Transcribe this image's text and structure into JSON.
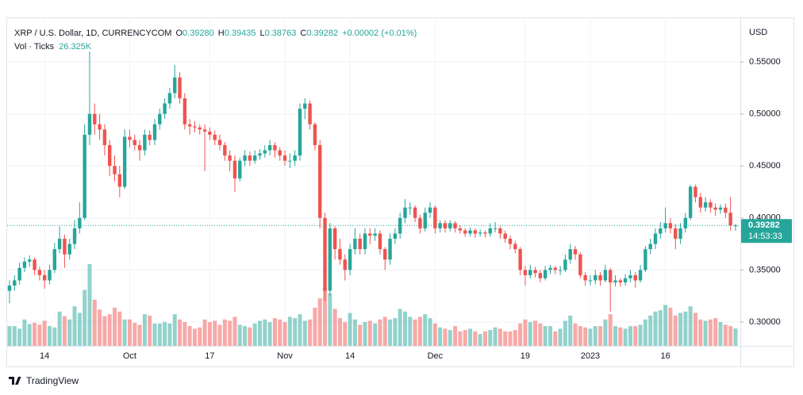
{
  "chart_data": {
    "type": "candlestick",
    "title": "XRP / U.S. Dollar, 1D, CURRENCYCOM",
    "legend": [
      {
        "key": "O",
        "label": "0.39280"
      },
      {
        "key": "H",
        "label": "0.39435"
      },
      {
        "key": "L",
        "label": "0.38763"
      },
      {
        "key": "C",
        "label": "0.39282"
      }
    ],
    "change": "+0.00002 (+0.01%)",
    "currency": "USD",
    "colors": {
      "up": "#26a69a",
      "down": "#ef5350"
    },
    "categories": [
      null,
      null,
      null,
      null,
      null,
      null,
      null,
      "14",
      null,
      null,
      null,
      null,
      null,
      null,
      null,
      null,
      null,
      null,
      null,
      null,
      null,
      null,
      null,
      null,
      "Oct",
      null,
      null,
      null,
      null,
      null,
      null,
      null,
      null,
      null,
      null,
      null,
      null,
      null,
      null,
      null,
      "17",
      null,
      null,
      null,
      null,
      null,
      null,
      null,
      null,
      null,
      null,
      null,
      null,
      null,
      null,
      "Nov",
      null,
      null,
      null,
      null,
      null,
      null,
      null,
      null,
      null,
      null,
      null,
      null,
      "14",
      null,
      null,
      null,
      null,
      null,
      null,
      null,
      null,
      null,
      null,
      null,
      null,
      null,
      null,
      null,
      null,
      "Dec",
      null,
      null,
      null,
      null,
      null,
      null,
      null,
      null,
      null,
      null,
      null,
      null,
      null,
      null,
      null,
      null,
      null,
      "19",
      null,
      null,
      null,
      null,
      null,
      null,
      null,
      null,
      null,
      null,
      null,
      null,
      "2023",
      null,
      null,
      null,
      null,
      null,
      null,
      null,
      null,
      null,
      null,
      null,
      null,
      null,
      null,
      "16",
      null,
      null,
      null,
      null,
      null,
      null,
      null,
      null,
      null,
      null,
      null,
      null,
      null,
      null
    ],
    "ohlc": [
      [
        0.33,
        0.34,
        0.318,
        0.335
      ],
      [
        0.335,
        0.345,
        0.33,
        0.34
      ],
      [
        0.34,
        0.357,
        0.336,
        0.352
      ],
      [
        0.352,
        0.362,
        0.348,
        0.358
      ],
      [
        0.358,
        0.364,
        0.353,
        0.36
      ],
      [
        0.36,
        0.362,
        0.345,
        0.35
      ],
      [
        0.35,
        0.353,
        0.34,
        0.345
      ],
      [
        0.345,
        0.35,
        0.332,
        0.34
      ],
      [
        0.34,
        0.355,
        0.336,
        0.35
      ],
      [
        0.35,
        0.376,
        0.347,
        0.37
      ],
      [
        0.37,
        0.392,
        0.366,
        0.38
      ],
      [
        0.38,
        0.384,
        0.352,
        0.365
      ],
      [
        0.365,
        0.38,
        0.36,
        0.375
      ],
      [
        0.375,
        0.398,
        0.37,
        0.39
      ],
      [
        0.39,
        0.415,
        0.385,
        0.4
      ],
      [
        0.4,
        0.49,
        0.398,
        0.48
      ],
      [
        0.48,
        0.56,
        0.47,
        0.5
      ],
      [
        0.5,
        0.51,
        0.48,
        0.49
      ],
      [
        0.49,
        0.5,
        0.475,
        0.485
      ],
      [
        0.485,
        0.49,
        0.46,
        0.47
      ],
      [
        0.47,
        0.475,
        0.44,
        0.45
      ],
      [
        0.45,
        0.46,
        0.435,
        0.442
      ],
      [
        0.442,
        0.45,
        0.42,
        0.43
      ],
      [
        0.43,
        0.485,
        0.428,
        0.478
      ],
      [
        0.478,
        0.485,
        0.468,
        0.475
      ],
      [
        0.475,
        0.48,
        0.465,
        0.47
      ],
      [
        0.47,
        0.475,
        0.455,
        0.465
      ],
      [
        0.465,
        0.485,
        0.46,
        0.48
      ],
      [
        0.48,
        0.484,
        0.47,
        0.475
      ],
      [
        0.475,
        0.495,
        0.47,
        0.49
      ],
      [
        0.49,
        0.505,
        0.485,
        0.5
      ],
      [
        0.5,
        0.515,
        0.495,
        0.51
      ],
      [
        0.51,
        0.525,
        0.505,
        0.52
      ],
      [
        0.52,
        0.547,
        0.515,
        0.535
      ],
      [
        0.535,
        0.54,
        0.51,
        0.515
      ],
      [
        0.515,
        0.52,
        0.485,
        0.49
      ],
      [
        0.49,
        0.495,
        0.48,
        0.488
      ],
      [
        0.488,
        0.493,
        0.482,
        0.487
      ],
      [
        0.487,
        0.49,
        0.48,
        0.485
      ],
      [
        0.485,
        0.49,
        0.445,
        0.483
      ],
      [
        0.483,
        0.487,
        0.475,
        0.48
      ],
      [
        0.48,
        0.484,
        0.47,
        0.475
      ],
      [
        0.475,
        0.48,
        0.465,
        0.47
      ],
      [
        0.47,
        0.473,
        0.455,
        0.46
      ],
      [
        0.46,
        0.465,
        0.445,
        0.455
      ],
      [
        0.455,
        0.46,
        0.425,
        0.438
      ],
      [
        0.438,
        0.458,
        0.435,
        0.455
      ],
      [
        0.455,
        0.465,
        0.45,
        0.46
      ],
      [
        0.46,
        0.464,
        0.45,
        0.455
      ],
      [
        0.455,
        0.465,
        0.452,
        0.46
      ],
      [
        0.46,
        0.466,
        0.456,
        0.462
      ],
      [
        0.462,
        0.47,
        0.458,
        0.465
      ],
      [
        0.465,
        0.475,
        0.46,
        0.47
      ],
      [
        0.47,
        0.473,
        0.458,
        0.465
      ],
      [
        0.465,
        0.468,
        0.455,
        0.46
      ],
      [
        0.46,
        0.465,
        0.45,
        0.455
      ],
      [
        0.455,
        0.462,
        0.448,
        0.455
      ],
      [
        0.455,
        0.465,
        0.45,
        0.46
      ],
      [
        0.46,
        0.51,
        0.455,
        0.505
      ],
      [
        0.505,
        0.515,
        0.495,
        0.51
      ],
      [
        0.51,
        0.513,
        0.485,
        0.49
      ],
      [
        0.49,
        0.492,
        0.465,
        0.47
      ],
      [
        0.47,
        0.475,
        0.39,
        0.4
      ],
      [
        0.4,
        0.405,
        0.32,
        0.33
      ],
      [
        0.33,
        0.395,
        0.325,
        0.39
      ],
      [
        0.39,
        0.392,
        0.36,
        0.37
      ],
      [
        0.37,
        0.38,
        0.355,
        0.36
      ],
      [
        0.36,
        0.365,
        0.34,
        0.35
      ],
      [
        0.35,
        0.375,
        0.345,
        0.37
      ],
      [
        0.37,
        0.39,
        0.365,
        0.38
      ],
      [
        0.38,
        0.385,
        0.365,
        0.37
      ],
      [
        0.37,
        0.39,
        0.365,
        0.385
      ],
      [
        0.385,
        0.39,
        0.375,
        0.383
      ],
      [
        0.383,
        0.39,
        0.378,
        0.385
      ],
      [
        0.385,
        0.388,
        0.365,
        0.37
      ],
      [
        0.37,
        0.372,
        0.35,
        0.36
      ],
      [
        0.36,
        0.385,
        0.355,
        0.38
      ],
      [
        0.38,
        0.39,
        0.375,
        0.385
      ],
      [
        0.385,
        0.405,
        0.38,
        0.4
      ],
      [
        0.4,
        0.418,
        0.395,
        0.41
      ],
      [
        0.41,
        0.415,
        0.403,
        0.41
      ],
      [
        0.41,
        0.412,
        0.396,
        0.4
      ],
      [
        0.4,
        0.403,
        0.385,
        0.39
      ],
      [
        0.39,
        0.41,
        0.387,
        0.405
      ],
      [
        0.405,
        0.415,
        0.4,
        0.41
      ],
      [
        0.41,
        0.412,
        0.385,
        0.39
      ],
      [
        0.39,
        0.398,
        0.386,
        0.395
      ],
      [
        0.395,
        0.398,
        0.386,
        0.39
      ],
      [
        0.39,
        0.398,
        0.387,
        0.395
      ],
      [
        0.395,
        0.397,
        0.386,
        0.39
      ],
      [
        0.39,
        0.393,
        0.385,
        0.388
      ],
      [
        0.388,
        0.39,
        0.382,
        0.385
      ],
      [
        0.385,
        0.391,
        0.382,
        0.388
      ],
      [
        0.388,
        0.39,
        0.381,
        0.385
      ],
      [
        0.385,
        0.389,
        0.382,
        0.386
      ],
      [
        0.386,
        0.388,
        0.381,
        0.385
      ],
      [
        0.385,
        0.395,
        0.382,
        0.39
      ],
      [
        0.39,
        0.396,
        0.386,
        0.39
      ],
      [
        0.39,
        0.392,
        0.38,
        0.385
      ],
      [
        0.385,
        0.388,
        0.376,
        0.38
      ],
      [
        0.38,
        0.383,
        0.37,
        0.375
      ],
      [
        0.375,
        0.378,
        0.366,
        0.37
      ],
      [
        0.37,
        0.372,
        0.345,
        0.35
      ],
      [
        0.35,
        0.354,
        0.335,
        0.345
      ],
      [
        0.345,
        0.355,
        0.342,
        0.35
      ],
      [
        0.35,
        0.353,
        0.343,
        0.347
      ],
      [
        0.347,
        0.35,
        0.338,
        0.342
      ],
      [
        0.342,
        0.354,
        0.34,
        0.35
      ],
      [
        0.35,
        0.355,
        0.346,
        0.352
      ],
      [
        0.352,
        0.354,
        0.346,
        0.35
      ],
      [
        0.35,
        0.354,
        0.345,
        0.35
      ],
      [
        0.35,
        0.365,
        0.348,
        0.36
      ],
      [
        0.36,
        0.375,
        0.356,
        0.37
      ],
      [
        0.37,
        0.373,
        0.36,
        0.365
      ],
      [
        0.365,
        0.367,
        0.342,
        0.345
      ],
      [
        0.345,
        0.348,
        0.335,
        0.34
      ],
      [
        0.34,
        0.345,
        0.335,
        0.34
      ],
      [
        0.34,
        0.35,
        0.336,
        0.345
      ],
      [
        0.345,
        0.348,
        0.335,
        0.34
      ],
      [
        0.34,
        0.355,
        0.338,
        0.35
      ],
      [
        0.35,
        0.352,
        0.31,
        0.338
      ],
      [
        0.338,
        0.345,
        0.334,
        0.34
      ],
      [
        0.34,
        0.342,
        0.334,
        0.338
      ],
      [
        0.338,
        0.346,
        0.335,
        0.342
      ],
      [
        0.342,
        0.35,
        0.338,
        0.345
      ],
      [
        0.345,
        0.348,
        0.333,
        0.34
      ],
      [
        0.34,
        0.355,
        0.338,
        0.35
      ],
      [
        0.35,
        0.373,
        0.348,
        0.37
      ],
      [
        0.37,
        0.38,
        0.365,
        0.375
      ],
      [
        0.375,
        0.39,
        0.37,
        0.385
      ],
      [
        0.385,
        0.396,
        0.38,
        0.39
      ],
      [
        0.39,
        0.41,
        0.386,
        0.395
      ],
      [
        0.395,
        0.4,
        0.385,
        0.39
      ],
      [
        0.39,
        0.394,
        0.37,
        0.38
      ],
      [
        0.38,
        0.395,
        0.375,
        0.39
      ],
      [
        0.39,
        0.405,
        0.386,
        0.4
      ],
      [
        0.4,
        0.432,
        0.398,
        0.43
      ],
      [
        0.43,
        0.432,
        0.415,
        0.42
      ],
      [
        0.42,
        0.424,
        0.405,
        0.41
      ],
      [
        0.41,
        0.42,
        0.406,
        0.415
      ],
      [
        0.415,
        0.418,
        0.405,
        0.41
      ],
      [
        0.41,
        0.414,
        0.402,
        0.408
      ],
      [
        0.408,
        0.413,
        0.404,
        0.41
      ],
      [
        0.41,
        0.414,
        0.4,
        0.405
      ],
      [
        0.405,
        0.42,
        0.388,
        0.3928
      ],
      [
        0.3928,
        0.39435,
        0.38763,
        0.39282
      ]
    ],
    "volume": {
      "name": "Vol · Ticks",
      "label": "26.325K",
      "values": [
        30000,
        30000,
        26000,
        40000,
        33000,
        35000,
        32000,
        38000,
        30000,
        28000,
        52000,
        45000,
        40000,
        60000,
        50000,
        85000,
        124000,
        70000,
        55000,
        45000,
        48000,
        58000,
        52000,
        40000,
        40000,
        35000,
        32000,
        48000,
        46000,
        34000,
        34000,
        36000,
        34000,
        48000,
        40000,
        36000,
        30000,
        26000,
        28000,
        40000,
        36000,
        38000,
        32000,
        40000,
        38000,
        44000,
        32000,
        30000,
        28000,
        34000,
        38000,
        40000,
        36000,
        42000,
        40000,
        36000,
        44000,
        42000,
        48000,
        38000,
        40000,
        58000,
        72000,
        88000,
        80000,
        56000,
        42000,
        36000,
        50000,
        40000,
        32000,
        36000,
        38000,
        34000,
        40000,
        44000,
        40000,
        42000,
        56000,
        52000,
        44000,
        40000,
        44000,
        48000,
        42000,
        34000,
        28000,
        26000,
        24000,
        30000,
        22000,
        24000,
        26000,
        22000,
        18000,
        22000,
        24000,
        28000,
        26000,
        22000,
        22000,
        24000,
        34000,
        40000,
        36000,
        38000,
        34000,
        30000,
        30000,
        22000,
        26000,
        38000,
        46000,
        34000,
        30000,
        28000,
        26000,
        30000,
        30000,
        40000,
        48000,
        30000,
        28000,
        26000,
        30000,
        30000,
        32000,
        40000,
        46000,
        52000,
        54000,
        62000,
        58000,
        46000,
        50000,
        52000,
        60000,
        50000,
        40000,
        38000,
        40000,
        42000,
        36000,
        32000,
        30000,
        26325
      ]
    },
    "last_price": {
      "value": 0.39282,
      "label": "0.39282"
    },
    "countdown": "14:53:33",
    "ylim": [
      0.2771,
      0.5927
    ],
    "yticks": [
      {
        "value": 0.3,
        "label": "0.30000"
      },
      {
        "value": 0.35,
        "label": "0.35000"
      },
      {
        "value": 0.4,
        "label": "0.40000"
      },
      {
        "value": 0.45,
        "label": "0.45000"
      },
      {
        "value": 0.5,
        "label": "0.50000"
      },
      {
        "value": 0.55,
        "label": "0.55000"
      }
    ],
    "grid": true
  },
  "footer": {
    "brand": "TradingView"
  }
}
